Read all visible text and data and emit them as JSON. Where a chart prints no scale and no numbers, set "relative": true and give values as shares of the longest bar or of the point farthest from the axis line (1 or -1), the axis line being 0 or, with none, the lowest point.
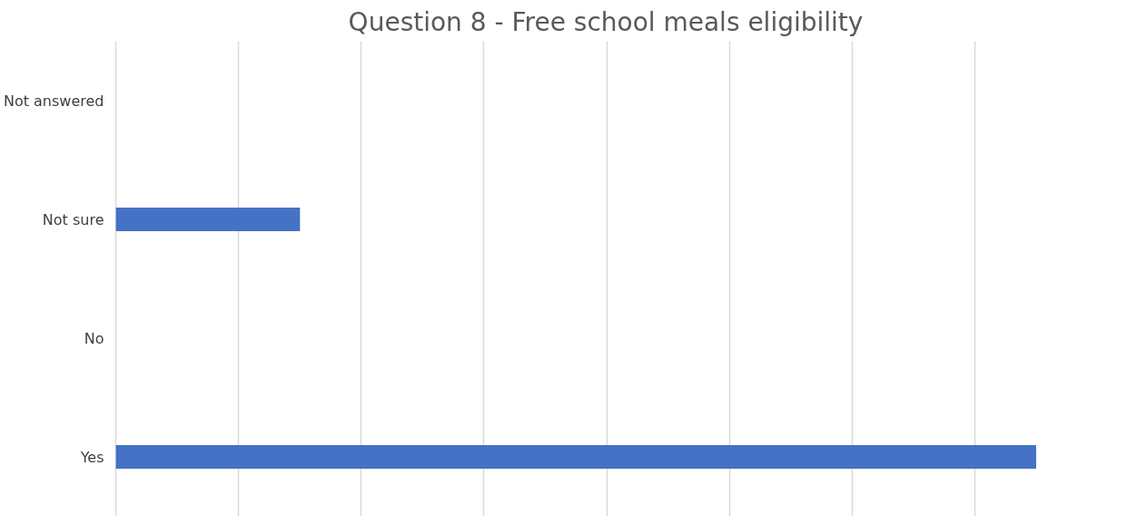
{
  "chart_data": {
    "type": "bar",
    "orientation": "horizontal",
    "relative": true,
    "title": "Question 8 - Free school meals eligibility",
    "categories": [
      "Not answered",
      "Not sure",
      "No",
      "Yes"
    ],
    "values": [
      0,
      0.2,
      0,
      1
    ],
    "color": "#4472c4",
    "grid": "x"
  }
}
